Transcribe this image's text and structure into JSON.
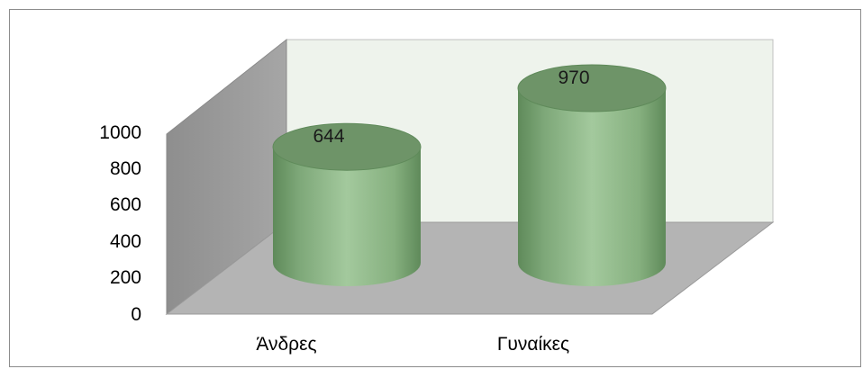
{
  "chart_data": {
    "type": "bar",
    "bar_shape": "3d-cylinder",
    "categories": [
      "Άνδρες",
      "Γυναίκες"
    ],
    "values": [
      644,
      970
    ],
    "data_labels": [
      "644",
      "970"
    ],
    "title": "",
    "xlabel": "",
    "ylabel": "",
    "ylim": [
      0,
      1000
    ],
    "yticks": [
      "0",
      "200",
      "400",
      "600",
      "800",
      "1000"
    ],
    "grid": false,
    "legend": "none",
    "colors": {
      "bar_body": "#8fb88a",
      "bar_shade": "#5f8a5a",
      "bar_top": "#6e9468",
      "back_wall": "#eef3ec",
      "side_wall": "#9a9a9a",
      "floor": "#b4b4b4",
      "frame_border": "#8c8c8c"
    }
  }
}
